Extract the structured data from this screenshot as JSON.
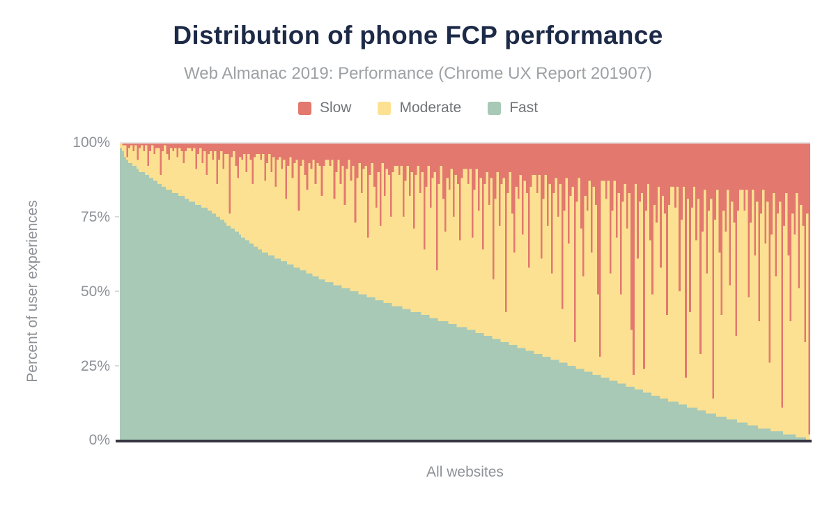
{
  "chart_data": {
    "type": "bar",
    "stacked": true,
    "stack_total_percent": 100,
    "title": "Distribution of phone FCP performance",
    "subtitle": "Web Almanac 2019: Performance (Chrome UX Report 201907)",
    "xlabel": "All websites",
    "ylabel": "Percent of user experiences",
    "yticks": [
      "100%",
      "75%",
      "50%",
      "25%",
      "0%"
    ],
    "ylim": [
      0,
      100
    ],
    "legend_position": "top",
    "grid": "top line only",
    "x_axis_note": "websites sorted by decreasing share of fast FCP experiences",
    "legend": [
      {
        "label": "Slow",
        "color": "#e2786e"
      },
      {
        "label": "Moderate",
        "color": "#fce192"
      },
      {
        "label": "Fast",
        "color": "#a7c9b6"
      }
    ],
    "colors": {
      "slow": "#e2786e",
      "moderate": "#fce192",
      "fast": "#a7c9b6",
      "axis": "#363642",
      "gridline": "#e5e5e5",
      "title": "#1d2a47",
      "label_gray": "#8d9298"
    },
    "bars": {
      "units": "percent of user experiences",
      "note": "per-site cumulative values: moderate = fast_plus_moderate - fast; slow = 100 - fast_plus_moderate",
      "fast": [
        98,
        97,
        95,
        94,
        93,
        93,
        92,
        92,
        91,
        90,
        90,
        90,
        89,
        89,
        88,
        88,
        87,
        87,
        86,
        86,
        85,
        85,
        84,
        84,
        84,
        83,
        83,
        83,
        82,
        82,
        82,
        81,
        81,
        80,
        80,
        80,
        79,
        79,
        79,
        78,
        78,
        78,
        77,
        77,
        76,
        76,
        75,
        75,
        74,
        74,
        73,
        72,
        72,
        71,
        71,
        70,
        70,
        69,
        68,
        68,
        67,
        67,
        66,
        66,
        65,
        65,
        64,
        64,
        63,
        63,
        63,
        62,
        62,
        62,
        61,
        61,
        61,
        60,
        60,
        60,
        59,
        59,
        59,
        58,
        58,
        58,
        57,
        57,
        57,
        56,
        56,
        56,
        55,
        55,
        55,
        54,
        54,
        54,
        53,
        53,
        53,
        53,
        52,
        52,
        52,
        52,
        51,
        51,
        51,
        51,
        50,
        50,
        50,
        50,
        49,
        49,
        49,
        49,
        48,
        48,
        48,
        48,
        47,
        47,
        47,
        47,
        46,
        46,
        46,
        46,
        45,
        45,
        45,
        45,
        45,
        44,
        44,
        44,
        44,
        43,
        43,
        43,
        43,
        43,
        42,
        42,
        42,
        42,
        41,
        41,
        41,
        41,
        40,
        40,
        40,
        40,
        40,
        39,
        39,
        39,
        39,
        38,
        38,
        38,
        38,
        38,
        37,
        37,
        37,
        37,
        36,
        36,
        36,
        36,
        35,
        35,
        35,
        35,
        34,
        34,
        34,
        34,
        33,
        33,
        33,
        33,
        32,
        32,
        32,
        32,
        31,
        31,
        31,
        31,
        30,
        30,
        30,
        30,
        29,
        29,
        29,
        29,
        28,
        28,
        28,
        28,
        27,
        27,
        27,
        27,
        26,
        26,
        26,
        26,
        25,
        25,
        25,
        25,
        24,
        24,
        24,
        24,
        23,
        23,
        23,
        23,
        22,
        22,
        22,
        22,
        21,
        21,
        21,
        21,
        20,
        20,
        20,
        20,
        19,
        19,
        19,
        19,
        18,
        18,
        18,
        18,
        17,
        17,
        17,
        17,
        16,
        16,
        16,
        16,
        15,
        15,
        15,
        15,
        14,
        14,
        14,
        14,
        13,
        13,
        13,
        13,
        13,
        12,
        12,
        12,
        12,
        11,
        11,
        11,
        11,
        11,
        10,
        10,
        10,
        10,
        9,
        9,
        9,
        9,
        9,
        8,
        8,
        8,
        8,
        8,
        7,
        7,
        7,
        7,
        7,
        6,
        6,
        6,
        6,
        6,
        5,
        5,
        5,
        5,
        5,
        4,
        4,
        4,
        4,
        4,
        4,
        3,
        3,
        3,
        3,
        3,
        3,
        2,
        2,
        2,
        2,
        2,
        2,
        1,
        1,
        1,
        1,
        1,
        0,
        0
      ],
      "fast_plus_moderate": [
        100,
        99,
        99,
        95,
        98,
        99,
        97,
        99,
        94,
        98,
        99,
        97,
        99,
        92,
        97,
        99,
        96,
        98,
        98,
        89,
        97,
        99,
        96,
        94,
        98,
        97,
        98,
        95,
        98,
        97,
        93,
        97,
        98,
        98,
        97,
        98,
        91,
        96,
        98,
        93,
        97,
        89,
        96,
        97,
        94,
        97,
        86,
        94,
        97,
        91,
        96,
        96,
        76,
        95,
        97,
        92,
        88,
        95,
        94,
        96,
        90,
        96,
        94,
        86,
        95,
        96,
        96,
        94,
        96,
        87,
        93,
        96,
        90,
        95,
        85,
        94,
        95,
        91,
        94,
        81,
        92,
        95,
        88,
        93,
        94,
        77,
        92,
        94,
        89,
        84,
        93,
        91,
        94,
        86,
        93,
        92,
        82,
        92,
        94,
        94,
        92,
        94,
        81,
        90,
        94,
        86,
        92,
        79,
        91,
        94,
        87,
        92,
        73,
        88,
        93,
        83,
        91,
        92,
        68,
        89,
        93,
        85,
        78,
        90,
        72,
        93,
        82,
        91,
        89,
        75,
        90,
        92,
        92,
        89,
        92,
        75,
        87,
        92,
        82,
        90,
        71,
        89,
        92,
        83,
        90,
        64,
        85,
        92,
        78,
        88,
        90,
        57,
        86,
        92,
        81,
        70,
        88,
        84,
        91,
        75,
        89,
        86,
        67,
        88,
        91,
        91,
        86,
        91,
        68,
        84,
        91,
        77,
        88,
        64,
        86,
        90,
        79,
        88,
        54,
        81,
        90,
        72,
        86,
        88,
        43,
        83,
        90,
        76,
        63,
        85,
        81,
        89,
        69,
        87,
        83,
        58,
        85,
        89,
        89,
        83,
        89,
        61,
        81,
        89,
        72,
        86,
        56,
        83,
        88,
        75,
        86,
        44,
        77,
        88,
        66,
        82,
        85,
        33,
        80,
        88,
        71,
        55,
        82,
        77,
        87,
        63,
        85,
        79,
        49,
        28,
        87,
        87,
        81,
        87,
        56,
        77,
        87,
        68,
        83,
        49,
        80,
        86,
        71,
        83,
        37,
        22,
        86,
        61,
        80,
        83,
        24,
        77,
        86,
        67,
        49,
        79,
        73,
        85,
        58,
        82,
        76,
        42,
        79,
        85,
        85,
        78,
        85,
        50,
        74,
        85,
        21,
        81,
        43,
        78,
        85,
        67,
        81,
        29,
        70,
        84,
        56,
        77,
        81,
        14,
        74,
        84,
        63,
        42,
        77,
        70,
        84,
        52,
        80,
        73,
        35,
        77,
        84,
        84,
        77,
        84,
        48,
        73,
        84,
        62,
        80,
        40,
        76,
        84,
        66,
        80,
        26,
        69,
        83,
        55,
        76,
        80,
        11,
        72,
        83,
        62,
        40,
        76,
        69,
        83,
        51,
        79,
        72,
        33,
        76,
        2
      ]
    }
  }
}
